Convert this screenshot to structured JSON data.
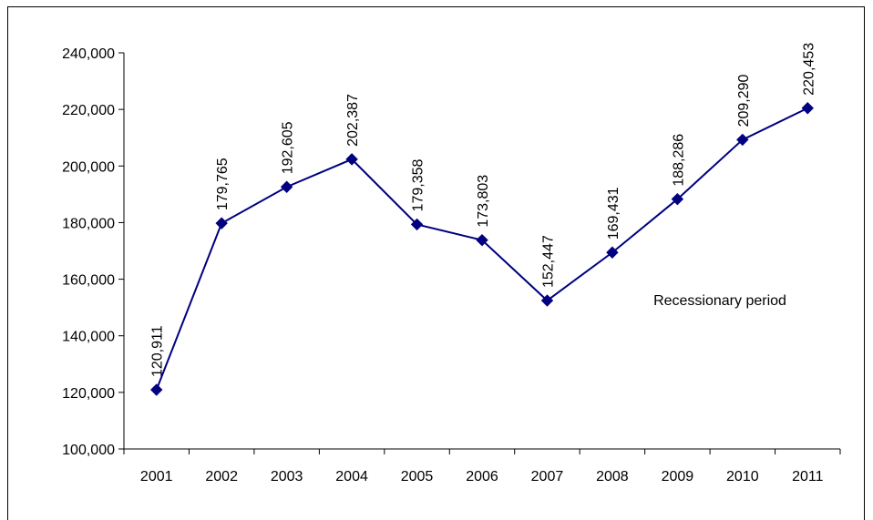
{
  "chart_data": {
    "type": "line",
    "title": "",
    "xlabel": "",
    "ylabel": "",
    "categories": [
      "2001",
      "2002",
      "2003",
      "2004",
      "2005",
      "2006",
      "2007",
      "2008",
      "2009",
      "2010",
      "2011"
    ],
    "series": [
      {
        "values": [
          120911,
          179765,
          192605,
          202387,
          179358,
          173803,
          152447,
          169431,
          188286,
          209290,
          220453
        ],
        "data_labels": [
          "120,911",
          "179,765",
          "192,605",
          "202,387",
          "179,358",
          "173,803",
          "152,447",
          "169,431",
          "188,286",
          "209,290",
          "220,453"
        ],
        "color": "#000080",
        "marker": "diamond"
      }
    ],
    "ylim": [
      100000,
      240000
    ],
    "yticks": [
      100000,
      120000,
      140000,
      160000,
      180000,
      200000,
      220000,
      240000
    ],
    "ytick_labels": [
      "100,000",
      "120,000",
      "140,000",
      "160,000",
      "180,000",
      "200,000",
      "220,000",
      "240,000"
    ],
    "grid": false,
    "legend": "none",
    "annotation": "Recessionary period"
  }
}
